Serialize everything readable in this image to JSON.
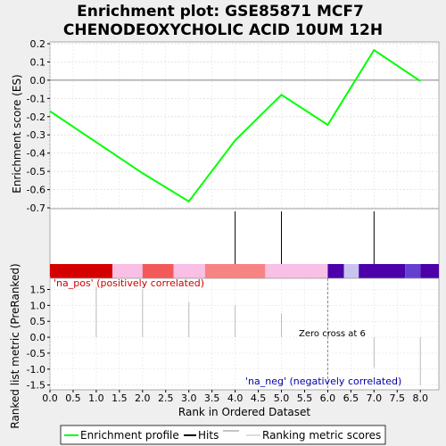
{
  "title_line1": "Enrichment plot: GSE85871 MCF7",
  "title_line2": "CHENODEOXYCHOLIC ACID 10UM 12H",
  "colors": {
    "es_line": "#00ff00",
    "hit_line": "#000000",
    "metric_line": "#bbbbbb",
    "pos_text": "#cc0000",
    "neg_text": "#0000aa",
    "zero_line": "#888888",
    "background": "#efefef"
  },
  "chart_data": [
    {
      "type": "line",
      "ylabel": "Enrichment score (ES)",
      "x": [
        0,
        1,
        2,
        3,
        4,
        5,
        6,
        7,
        8
      ],
      "y": [
        -0.17,
        -0.34,
        -0.51,
        -0.665,
        -0.33,
        -0.08,
        -0.245,
        0.165,
        -0.005
      ],
      "series": [
        {
          "name": "Enrichment profile",
          "values": [
            -0.17,
            -0.34,
            -0.51,
            -0.665,
            -0.33,
            -0.08,
            -0.245,
            0.165,
            -0.005
          ]
        }
      ],
      "ylim": [
        -0.7,
        0.2
      ],
      "yticks": [
        "0.2",
        "0.1",
        "0.0",
        "-0.1",
        "-0.2",
        "-0.3",
        "-0.4",
        "-0.5",
        "-0.6",
        "-0.7"
      ],
      "grid": true
    },
    {
      "type": "hits",
      "hits": [
        4,
        5,
        7
      ],
      "color_bands": [
        {
          "from": 0,
          "to": 1.35,
          "color": "#d40000"
        },
        {
          "from": 1.35,
          "to": 2.0,
          "color": "#f9bfe4"
        },
        {
          "from": 2.0,
          "to": 2.67,
          "color": "#f35959"
        },
        {
          "from": 2.67,
          "to": 3.35,
          "color": "#f9bfe4"
        },
        {
          "from": 3.35,
          "to": 4.65,
          "color": "#f88383"
        },
        {
          "from": 4.65,
          "to": 6.0,
          "color": "#f9bfe4"
        },
        {
          "from": 6.0,
          "to": 6.35,
          "color": "#4b00a9"
        },
        {
          "from": 6.35,
          "to": 6.67,
          "color": "#c9c3ef"
        },
        {
          "from": 6.67,
          "to": 7.67,
          "color": "#4b00a9"
        },
        {
          "from": 7.67,
          "to": 8.0,
          "color": "#6540cf"
        },
        {
          "from": 8.0,
          "to": 8.4,
          "color": "#4b00a9"
        }
      ]
    },
    {
      "type": "bar",
      "ylabel": "Ranked list metric (PreRanked)",
      "xlabel": "Rank in Ordered Dataset",
      "x": [
        0,
        1,
        2,
        3,
        4,
        5,
        6,
        7,
        8
      ],
      "values": [
        1.9,
        1.6,
        1.5,
        1.1,
        1.0,
        0.75,
        0,
        -0.95,
        -1.5
      ],
      "ylim": [
        -1.65,
        1.85
      ],
      "yticks": [
        "1.5",
        "1.0",
        "0.5",
        "0.0",
        "-0.5",
        "-1.0",
        "-1.5"
      ],
      "xlim": [
        0,
        8.4
      ],
      "xticks": [
        "0.0",
        "0.5",
        "1.0",
        "1.5",
        "2.0",
        "2.5",
        "3.0",
        "3.5",
        "4.0",
        "4.5",
        "5.0",
        "5.5",
        "6.0",
        "6.5",
        "7.0",
        "7.5",
        "8.0"
      ],
      "zero_cross": 6,
      "zero_cross_label": "Zero cross at 6",
      "pos_label": "'na_pos' (positively correlated)",
      "neg_label": "'na_neg' (negatively correlated)"
    }
  ],
  "legend": [
    {
      "label": "Enrichment profile",
      "color": "#00ff00"
    },
    {
      "label": "Hits",
      "color": "#000000"
    },
    {
      "label": "Ranking metric scores",
      "color": "#bbbbbb"
    }
  ]
}
